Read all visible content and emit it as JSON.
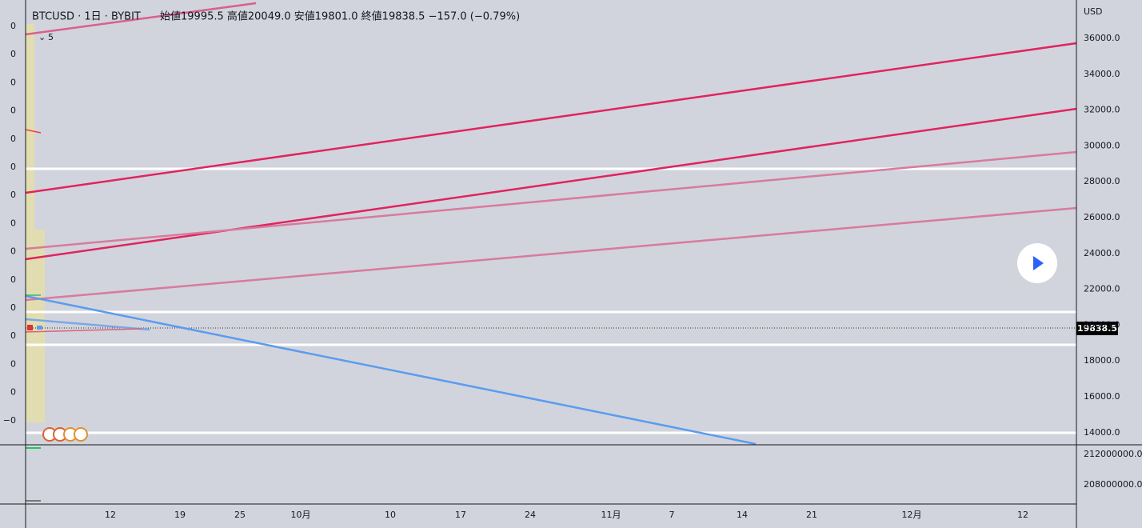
{
  "header": {
    "symbol": "BTCUSD · 1日 · BYBIT",
    "ohlc": "始値19995.5 高値20049.0 安値19801.0 終値19838.5 −157.0 (−0.79%)",
    "indicator": "5"
  },
  "price_axis": {
    "unit": "USD",
    "ticks": [
      "36000.0",
      "34000.0",
      "32000.0",
      "30000.0",
      "28000.0",
      "26000.0",
      "24000.0",
      "22000.0",
      "20000.0",
      "18000.0",
      "16000.0",
      "14000.0"
    ],
    "last_price": "19838.5"
  },
  "volume_axis": {
    "ticks": [
      "212000000.0",
      "208000000.0"
    ]
  },
  "left_axis": {
    "ticks": [
      "0",
      "0",
      "0",
      "0",
      "0",
      "0",
      "0",
      "0",
      "0",
      "0",
      "0",
      "0",
      "0",
      "0",
      "−0"
    ]
  },
  "time_axis": {
    "labels": [
      "12",
      "19",
      "25",
      "10月",
      "10",
      "17",
      "24",
      "11月",
      "7",
      "14",
      "21",
      "12月",
      "12"
    ]
  }
}
